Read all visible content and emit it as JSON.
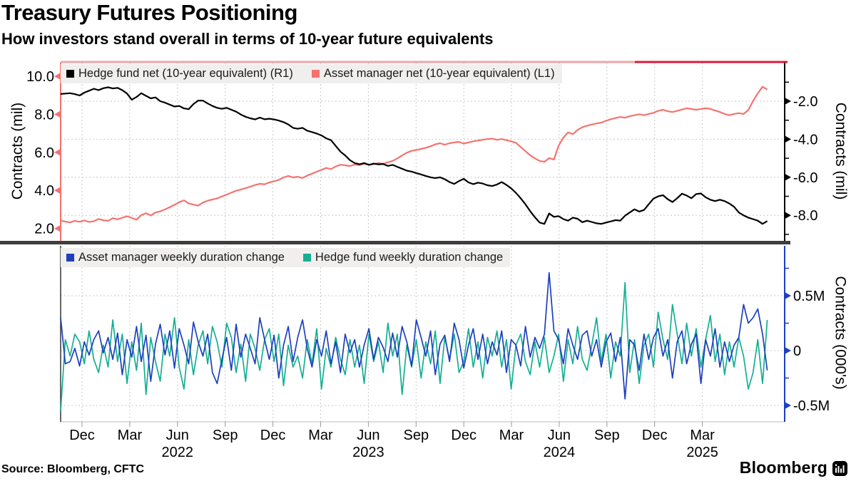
{
  "header": {
    "title": "Treasury Futures Positioning",
    "subtitle": "How investors stand overall in terms of 10-year future equivalents"
  },
  "footer": {
    "source": "Source:  Bloomberg, CFTC",
    "brand": "Bloomberg"
  },
  "colors": {
    "hedge_fund_net": "#000000",
    "asset_manager_net": "#f4736e",
    "asset_manager_weekly": "#1d3fc0",
    "hedge_fund_weekly": "#14af92",
    "top_border_left": "#eda4aa",
    "top_border_right": "#dc1a3c",
    "gridline": "#c9c9c9",
    "separator": "#3e3e3e"
  },
  "x_axis": {
    "months": [
      "Dec",
      "Mar",
      "Jun",
      "Sep",
      "Dec",
      "Mar",
      "Jun",
      "Sep",
      "Dec",
      "Mar",
      "Jun",
      "Sep",
      "Dec",
      "Mar"
    ],
    "years": [
      {
        "label": "2022",
        "tick": 2
      },
      {
        "label": "2023",
        "tick": 6
      },
      {
        "label": "2024",
        "tick": 10
      },
      {
        "label": "2025",
        "tick": 13
      }
    ]
  },
  "chart_data": [
    {
      "type": "line",
      "panel": "top",
      "legend": [
        {
          "label": "Hedge fund net (10-year equivalent) (R1)",
          "color": "#000000"
        },
        {
          "label": "Asset manager net (10-year equivalent) (L1)",
          "color": "#f4736e"
        }
      ],
      "left_axis": {
        "title": "Contracts (mil)",
        "color": "#f4736e",
        "ticks": [
          10.0,
          8.0,
          6.0,
          4.0,
          2.0
        ],
        "tick_labels": [
          "10.0",
          "8.0",
          "6.0",
          "4.0",
          "2.0"
        ]
      },
      "right_axis": {
        "title": "Contracts (mil)",
        "color": "#000000",
        "ticks": [
          -2.0,
          -4.0,
          -6.0,
          -8.0
        ],
        "tick_labels": [
          "-2.0",
          "-4.0",
          "-6.0",
          "-8.0"
        ],
        "minor_ticks": [
          -1,
          -3,
          -5,
          -7,
          -9
        ]
      },
      "series": [
        {
          "name": "Hedge fund net (10-year equivalent) (R1)",
          "axis": "right",
          "color": "#000000",
          "width": 2.2,
          "values": [
            -1.62,
            -1.6,
            -1.58,
            -1.63,
            -1.7,
            -1.55,
            -1.45,
            -1.35,
            -1.42,
            -1.32,
            -1.27,
            -1.33,
            -1.3,
            -1.42,
            -1.6,
            -1.92,
            -1.78,
            -1.58,
            -1.72,
            -1.85,
            -1.8,
            -2.0,
            -2.08,
            -2.18,
            -2.28,
            -2.25,
            -2.38,
            -2.42,
            -2.15,
            -1.97,
            -1.97,
            -2.12,
            -2.25,
            -2.35,
            -2.4,
            -2.35,
            -2.45,
            -2.55,
            -2.7,
            -2.82,
            -2.9,
            -2.96,
            -2.86,
            -2.95,
            -2.92,
            -2.96,
            -3.02,
            -3.1,
            -3.22,
            -3.4,
            -3.45,
            -3.4,
            -3.55,
            -3.62,
            -3.7,
            -3.8,
            -3.95,
            -4.05,
            -4.35,
            -4.65,
            -4.85,
            -5.1,
            -5.25,
            -5.32,
            -5.25,
            -5.35,
            -5.28,
            -5.32,
            -5.3,
            -5.4,
            -5.35,
            -5.45,
            -5.55,
            -5.65,
            -5.7,
            -5.78,
            -5.85,
            -5.93,
            -6.0,
            -6.04,
            -6.0,
            -6.1,
            -6.25,
            -6.35,
            -6.2,
            -6.08,
            -6.27,
            -6.36,
            -6.28,
            -6.33,
            -6.42,
            -6.46,
            -6.38,
            -6.25,
            -6.4,
            -6.58,
            -6.82,
            -7.1,
            -7.42,
            -7.78,
            -8.1,
            -8.38,
            -8.45,
            -7.9,
            -8.08,
            -8.04,
            -8.2,
            -8.28,
            -8.12,
            -8.18,
            -8.36,
            -8.28,
            -8.35,
            -8.42,
            -8.45,
            -8.38,
            -8.32,
            -8.25,
            -8.28,
            -8.02,
            -7.85,
            -7.68,
            -7.8,
            -7.72,
            -7.42,
            -7.12,
            -7.0,
            -6.94,
            -7.15,
            -7.3,
            -7.1,
            -6.86,
            -6.96,
            -7.1,
            -6.88,
            -6.85,
            -7.05,
            -7.18,
            -7.25,
            -7.18,
            -7.25,
            -7.38,
            -7.55,
            -7.85,
            -8.0,
            -8.12,
            -8.2,
            -8.28,
            -8.45,
            -8.3
          ]
        },
        {
          "name": "Asset manager net (10-year equivalent) (L1)",
          "axis": "left",
          "color": "#f4736e",
          "width": 2.2,
          "values": [
            2.42,
            2.36,
            2.32,
            2.4,
            2.35,
            2.42,
            2.34,
            2.38,
            2.5,
            2.43,
            2.4,
            2.54,
            2.48,
            2.56,
            2.64,
            2.55,
            2.46,
            2.7,
            2.8,
            2.68,
            2.84,
            2.9,
            3.0,
            3.12,
            3.24,
            3.38,
            3.48,
            3.32,
            3.25,
            3.2,
            3.36,
            3.46,
            3.52,
            3.58,
            3.68,
            3.78,
            3.88,
            3.98,
            4.05,
            4.12,
            4.2,
            4.28,
            4.35,
            4.32,
            4.42,
            4.48,
            4.55,
            4.68,
            4.76,
            4.68,
            4.72,
            4.65,
            4.78,
            4.88,
            4.98,
            5.08,
            5.18,
            5.12,
            5.26,
            5.35,
            5.32,
            5.28,
            5.36,
            5.33,
            5.4,
            5.35,
            5.38,
            5.44,
            5.4,
            5.48,
            5.55,
            5.68,
            5.84,
            5.98,
            6.08,
            6.12,
            6.18,
            6.24,
            6.32,
            6.42,
            6.48,
            6.4,
            6.48,
            6.52,
            6.55,
            6.46,
            6.52,
            6.58,
            6.62,
            6.66,
            6.7,
            6.72,
            6.66,
            6.7,
            6.64,
            6.58,
            6.5,
            6.28,
            6.06,
            5.85,
            5.68,
            5.55,
            5.5,
            5.7,
            5.62,
            6.35,
            6.78,
            7.05,
            6.96,
            7.18,
            7.32,
            7.4,
            7.46,
            7.52,
            7.56,
            7.66,
            7.74,
            7.8,
            7.86,
            7.82,
            7.9,
            7.95,
            8.0,
            7.95,
            8.02,
            8.08,
            8.18,
            8.24,
            8.16,
            8.12,
            8.18,
            8.25,
            8.32,
            8.28,
            8.24,
            8.28,
            8.32,
            8.28,
            8.2,
            8.12,
            8.02,
            7.95,
            8.02,
            8.06,
            8.02,
            8.22,
            8.7,
            9.1,
            9.45,
            9.3
          ]
        }
      ]
    },
    {
      "type": "line",
      "panel": "bottom",
      "legend": [
        {
          "label": "Asset manager weekly duration change",
          "color": "#1d3fc0"
        },
        {
          "label": "Hedge fund weekly duration change",
          "color": "#14af92"
        }
      ],
      "right_axis": {
        "title": "Contracts (000's)",
        "color": "#1d3fc0",
        "ticks": [
          0.5,
          0,
          -0.5
        ],
        "tick_labels": [
          "0.5M",
          "0",
          "-0.5M"
        ],
        "minor_ticks": [
          0.75,
          0.25,
          -0.25
        ]
      },
      "series": [
        {
          "name": "Asset manager weekly duration change",
          "color": "#1d3fc0",
          "width": 1.7,
          "values": [
            0.3,
            -0.12,
            -0.1,
            0.02,
            -0.14,
            0.08,
            -0.04,
            0.1,
            0.18,
            -0.02,
            0.12,
            -0.08,
            0.16,
            -0.22,
            0.1,
            -0.06,
            0.22,
            -0.1,
            0.14,
            -0.28,
            0.06,
            0.24,
            -0.04,
            0.18,
            -0.16,
            0.2,
            0.05,
            -0.12,
            0.26,
            0.08,
            -0.05,
            0.15,
            -0.2,
            -0.3,
            -0.08,
            0.12,
            -0.18,
            0.24,
            -0.06,
            0.15,
            0.02,
            -0.12,
            0.3,
            0.1,
            -0.08,
            0.14,
            -0.25,
            0.05,
            0.22,
            -0.1,
            0.12,
            0.28,
            0.02,
            -0.15,
            0.1,
            -0.05,
            0.18,
            -0.12,
            0.08,
            -0.2,
            0.15,
            -0.02,
            0.1,
            -0.15,
            0.05,
            0.2,
            -0.08,
            0.12,
            0.03,
            -0.1,
            0.16,
            -0.06,
            0.22,
            0.08,
            -0.14,
            0.28,
            0.12,
            -0.05,
            0.18,
            -0.22,
            0.06,
            0.14,
            -0.1,
            0.25,
            0.1,
            -0.16,
            0.05,
            0.2,
            -0.08,
            0.15,
            -0.12,
            0.08,
            -0.04,
            0.18,
            -0.2,
            0.1,
            0.05,
            -0.14,
            0.22,
            -0.06,
            0.12,
            0.02,
            0.15,
            0.71,
            0.18,
            0.1,
            -0.12,
            0.2,
            0.05,
            -0.08,
            0.14,
            0.18,
            -0.05,
            0.1,
            -0.15,
            0.08,
            0.16,
            -0.1,
            0.12,
            -0.44,
            0.1,
            0.05,
            -0.18,
            0.15,
            -0.08,
            0.12,
            0.2,
            -0.05,
            0.1,
            -0.25,
            0.08,
            0.18,
            -0.12,
            0.06,
            0.15,
            -0.3,
            0.1,
            -0.05,
            0.2,
            -0.15,
            0.08,
            -0.1,
            0.05,
            0.12,
            0.42,
            0.25,
            0.3,
            0.38,
            0.15,
            -0.18
          ]
        },
        {
          "name": "Hedge fund weekly duration change",
          "color": "#14af92",
          "width": 1.7,
          "values": [
            -0.55,
            0.1,
            -0.05,
            0.15,
            0.08,
            -0.12,
            0.18,
            -0.08,
            -0.2,
            0.05,
            -0.15,
            0.28,
            -0.1,
            0.15,
            -0.3,
            0.08,
            -0.18,
            0.25,
            -0.4,
            0.12,
            -0.1,
            -0.28,
            0.15,
            -0.05,
            0.3,
            -0.15,
            -0.35,
            0.1,
            -0.22,
            0.05,
            0.18,
            -0.12,
            0.22,
            0.08,
            -0.15,
            0.25,
            0.12,
            -0.2,
            0.06,
            -0.28,
            0.15,
            0.02,
            -0.18,
            0.1,
            0.2,
            -0.1,
            0.15,
            -0.32,
            0.05,
            -0.15,
            -0.05,
            -0.25,
            0.1,
            -0.12,
            0.2,
            -0.35,
            0.02,
            -0.15,
            0.12,
            -0.08,
            -0.22,
            0.1,
            -0.15,
            0.05,
            -0.3,
            0.15,
            -0.1,
            0.08,
            -0.2,
            0.25,
            -0.05,
            0.15,
            -0.4,
            0.05,
            -0.15,
            0.1,
            -0.25,
            0.08,
            -0.12,
            0.18,
            -0.3,
            0.12,
            -0.08,
            0.15,
            -0.2,
            -0.1,
            0.2,
            -0.15,
            0.08,
            -0.25,
            0.12,
            -0.05,
            0.18,
            -0.15,
            0.1,
            -0.35,
            0.05,
            0.15,
            -0.1,
            -0.22,
            0.08,
            -0.15,
            0.12,
            -0.2,
            -0.05,
            0.15,
            -0.28,
            0.1,
            -0.12,
            0.22,
            -0.08,
            -0.18,
            0.05,
            0.3,
            -0.1,
            0.15,
            -0.25,
            0.08,
            -0.05,
            0.62,
            -0.2,
            0.1,
            -0.3,
            0.05,
            0.15,
            -0.15,
            0.35,
            0.1,
            -0.08,
            0.42,
            0.15,
            -0.12,
            0.25,
            -0.05,
            0.2,
            -0.15,
            0.1,
            0.32,
            -0.1,
            0.15,
            -0.22,
            0.08,
            -0.15,
            0.12,
            -0.05,
            -0.35,
            -0.2,
            0.1,
            -0.3,
            0.28
          ]
        }
      ]
    }
  ]
}
